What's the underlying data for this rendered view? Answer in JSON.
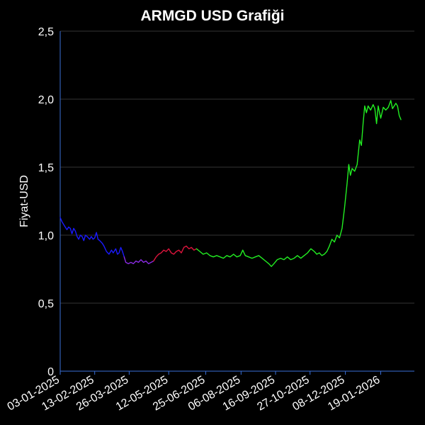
{
  "chart_data": {
    "type": "line",
    "title": "ARMGD USD Grafiği",
    "xlabel": "",
    "ylabel": "Fiyat-USD",
    "ylim": [
      0,
      2.5
    ],
    "xlim": [
      "2025-01-03",
      "2026-02-28"
    ],
    "grid": true,
    "legend": "none",
    "y_ticks": [
      {
        "value": 0,
        "label": "0"
      },
      {
        "value": 0.5,
        "label": "0,5"
      },
      {
        "value": 1.0,
        "label": "1,0"
      },
      {
        "value": 1.5,
        "label": "1,5"
      },
      {
        "value": 2.0,
        "label": "2,0"
      },
      {
        "value": 2.5,
        "label": "2,5"
      }
    ],
    "x_ticks": [
      {
        "date": "2025-01-03",
        "label": "03-01-2025"
      },
      {
        "date": "2025-02-13",
        "label": "13-02-2025"
      },
      {
        "date": "2025-03-26",
        "label": "26-03-2025"
      },
      {
        "date": "2025-05-12",
        "label": "12-05-2025"
      },
      {
        "date": "2025-06-25",
        "label": "25-06-2025"
      },
      {
        "date": "2025-08-06",
        "label": "06-08-2025"
      },
      {
        "date": "2025-09-16",
        "label": "16-09-2025"
      },
      {
        "date": "2025-10-27",
        "label": "27-10-2025"
      },
      {
        "date": "2025-12-08",
        "label": "08-12-2025"
      },
      {
        "date": "2026-01-19",
        "label": "19-01-2026"
      }
    ],
    "series": [
      {
        "color": "#1a1aff",
        "points": [
          [
            "2025-01-03",
            1.13
          ],
          [
            "2025-01-05",
            1.1
          ],
          [
            "2025-01-08",
            1.07
          ],
          [
            "2025-01-11",
            1.04
          ],
          [
            "2025-01-13",
            1.06
          ],
          [
            "2025-01-15",
            1.05
          ],
          [
            "2025-01-17",
            1.01
          ],
          [
            "2025-01-19",
            1.05
          ],
          [
            "2025-01-21",
            1.03
          ],
          [
            "2025-01-23",
            0.99
          ],
          [
            "2025-01-25",
            0.97
          ],
          [
            "2025-01-27",
            1.0
          ],
          [
            "2025-01-29",
            0.99
          ],
          [
            "2025-01-31",
            0.96
          ],
          [
            "2025-02-02",
            1.0
          ],
          [
            "2025-02-04",
            0.99
          ],
          [
            "2025-02-07",
            0.97
          ],
          [
            "2025-02-09",
            0.99
          ],
          [
            "2025-02-11",
            0.97
          ],
          [
            "2025-02-13",
            0.98
          ],
          [
            "2025-02-15",
            1.02
          ],
          [
            "2025-02-17",
            0.97
          ],
          [
            "2025-02-19",
            0.96
          ],
          [
            "2025-02-22",
            0.94
          ],
          [
            "2025-02-24",
            0.92
          ],
          [
            "2025-02-27",
            0.88
          ],
          [
            "2025-03-02",
            0.86
          ],
          [
            "2025-03-05",
            0.89
          ],
          [
            "2025-03-07",
            0.87
          ],
          [
            "2025-03-10",
            0.9
          ],
          [
            "2025-03-12",
            0.86
          ],
          [
            "2025-03-14",
            0.87
          ],
          [
            "2025-03-16",
            0.91
          ],
          [
            "2025-03-18",
            0.88
          ],
          [
            "2025-03-20",
            0.84
          ]
        ]
      },
      {
        "color": "#8a2be2",
        "points": [
          [
            "2025-03-20",
            0.84
          ],
          [
            "2025-03-22",
            0.8
          ],
          [
            "2025-03-25",
            0.79
          ],
          [
            "2025-03-28",
            0.8
          ],
          [
            "2025-03-31",
            0.79
          ],
          [
            "2025-04-03",
            0.81
          ],
          [
            "2025-04-06",
            0.8
          ],
          [
            "2025-04-09",
            0.82
          ],
          [
            "2025-04-12",
            0.8
          ],
          [
            "2025-04-15",
            0.81
          ],
          [
            "2025-04-18",
            0.79
          ],
          [
            "2025-04-21",
            0.8
          ],
          [
            "2025-04-24",
            0.81
          ]
        ]
      },
      {
        "color": "#dc143c",
        "points": [
          [
            "2025-04-24",
            0.81
          ],
          [
            "2025-04-27",
            0.84
          ],
          [
            "2025-04-30",
            0.86
          ],
          [
            "2025-05-03",
            0.87
          ],
          [
            "2025-05-06",
            0.89
          ],
          [
            "2025-05-09",
            0.88
          ],
          [
            "2025-05-12",
            0.9
          ],
          [
            "2025-05-15",
            0.87
          ],
          [
            "2025-05-18",
            0.86
          ],
          [
            "2025-05-21",
            0.88
          ],
          [
            "2025-05-24",
            0.89
          ],
          [
            "2025-05-27",
            0.87
          ],
          [
            "2025-05-30",
            0.91
          ],
          [
            "2025-06-02",
            0.92
          ],
          [
            "2025-06-05",
            0.9
          ],
          [
            "2025-06-08",
            0.91
          ],
          [
            "2025-06-11",
            0.89
          ],
          [
            "2025-06-14",
            0.9
          ]
        ]
      },
      {
        "color": "#22ee22",
        "points": [
          [
            "2025-06-14",
            0.9
          ],
          [
            "2025-06-18",
            0.88
          ],
          [
            "2025-06-22",
            0.86
          ],
          [
            "2025-06-26",
            0.87
          ],
          [
            "2025-06-30",
            0.85
          ],
          [
            "2025-07-04",
            0.84
          ],
          [
            "2025-07-08",
            0.85
          ],
          [
            "2025-07-12",
            0.84
          ],
          [
            "2025-07-16",
            0.83
          ],
          [
            "2025-07-20",
            0.85
          ],
          [
            "2025-07-24",
            0.84
          ],
          [
            "2025-07-28",
            0.86
          ],
          [
            "2025-08-01",
            0.84
          ],
          [
            "2025-08-05",
            0.85
          ],
          [
            "2025-08-08",
            0.89
          ],
          [
            "2025-08-11",
            0.85
          ],
          [
            "2025-08-15",
            0.84
          ],
          [
            "2025-08-19",
            0.83
          ],
          [
            "2025-08-23",
            0.84
          ],
          [
            "2025-08-27",
            0.85
          ],
          [
            "2025-08-31",
            0.83
          ],
          [
            "2025-09-04",
            0.81
          ],
          [
            "2025-09-08",
            0.79
          ],
          [
            "2025-09-11",
            0.77
          ],
          [
            "2025-09-14",
            0.79
          ],
          [
            "2025-09-18",
            0.82
          ],
          [
            "2025-09-22",
            0.83
          ],
          [
            "2025-09-26",
            0.82
          ],
          [
            "2025-09-30",
            0.84
          ],
          [
            "2025-10-04",
            0.82
          ],
          [
            "2025-10-08",
            0.83
          ],
          [
            "2025-10-12",
            0.85
          ],
          [
            "2025-10-16",
            0.83
          ],
          [
            "2025-10-20",
            0.85
          ],
          [
            "2025-10-24",
            0.87
          ],
          [
            "2025-10-28",
            0.9
          ],
          [
            "2025-11-01",
            0.88
          ],
          [
            "2025-11-04",
            0.86
          ],
          [
            "2025-11-07",
            0.87
          ],
          [
            "2025-11-10",
            0.85
          ],
          [
            "2025-11-13",
            0.86
          ],
          [
            "2025-11-16",
            0.88
          ],
          [
            "2025-11-19",
            0.92
          ],
          [
            "2025-11-22",
            0.97
          ],
          [
            "2025-11-25",
            0.95
          ],
          [
            "2025-11-28",
            1.0
          ],
          [
            "2025-12-01",
            0.98
          ],
          [
            "2025-12-04",
            1.05
          ],
          [
            "2025-12-07",
            1.2
          ],
          [
            "2025-12-10",
            1.38
          ],
          [
            "2025-12-12",
            1.52
          ],
          [
            "2025-12-14",
            1.44
          ],
          [
            "2025-12-16",
            1.49
          ],
          [
            "2025-12-19",
            1.47
          ],
          [
            "2025-12-22",
            1.52
          ],
          [
            "2025-12-25",
            1.7
          ],
          [
            "2025-12-27",
            1.66
          ],
          [
            "2025-12-29",
            1.82
          ],
          [
            "2025-12-31",
            1.95
          ],
          [
            "2026-01-02",
            1.9
          ],
          [
            "2026-01-04",
            1.95
          ],
          [
            "2026-01-07",
            1.92
          ],
          [
            "2026-01-10",
            1.96
          ],
          [
            "2026-01-12",
            1.93
          ],
          [
            "2026-01-14",
            1.82
          ],
          [
            "2026-01-16",
            1.95
          ],
          [
            "2026-01-19",
            1.86
          ],
          [
            "2026-01-22",
            1.94
          ],
          [
            "2026-01-25",
            1.92
          ],
          [
            "2026-01-28",
            1.94
          ],
          [
            "2026-01-31",
            1.99
          ],
          [
            "2026-02-02",
            1.93
          ],
          [
            "2026-02-04",
            1.95
          ],
          [
            "2026-02-06",
            1.97
          ],
          [
            "2026-02-08",
            1.95
          ],
          [
            "2026-02-10",
            1.88
          ],
          [
            "2026-02-12",
            1.85
          ]
        ]
      }
    ]
  }
}
